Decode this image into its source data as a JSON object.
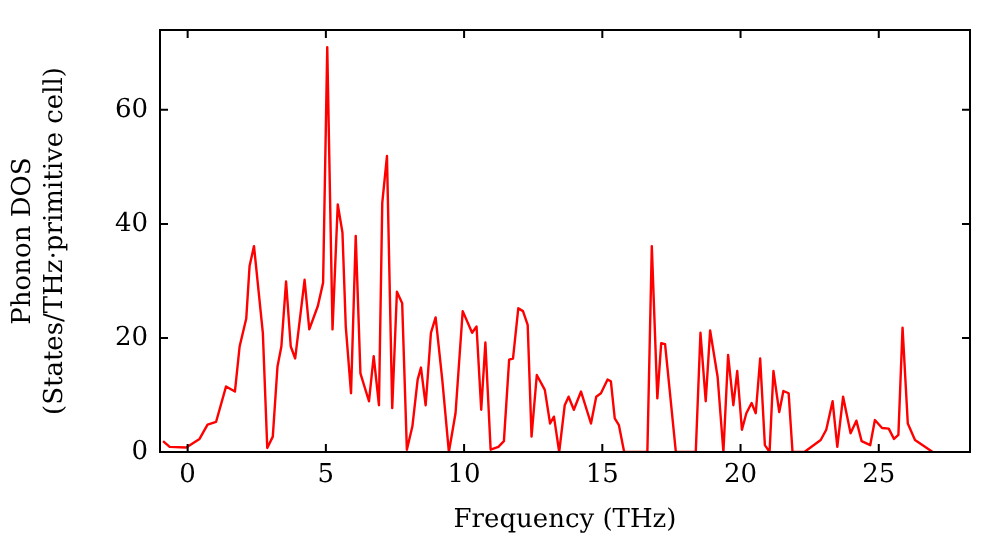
{
  "chart_data": {
    "type": "line",
    "xlabel": "Frequency (THz)",
    "ylabel": "Phonon DOS\n(States/THz·primitive cell)",
    "xlim": [
      -1,
      28.3
    ],
    "ylim": [
      0,
      74
    ],
    "xticks": [
      0,
      5,
      10,
      15,
      20,
      25
    ],
    "yticks": [
      0,
      20,
      40,
      60
    ],
    "grid": false,
    "legend": false,
    "marker": "none",
    "line_style": "solid",
    "series": [
      {
        "color": "#ff0000",
        "x": [
          -0.89,
          -0.65,
          -0.05,
          0.43,
          0.72,
          1.03,
          1.39,
          1.71,
          1.88,
          2.12,
          2.24,
          2.4,
          2.72,
          2.88,
          3.08,
          3.25,
          3.39,
          3.56,
          3.73,
          3.89,
          4.23,
          4.4,
          4.71,
          4.9,
          5.05,
          5.24,
          5.43,
          5.6,
          5.72,
          5.91,
          6.08,
          6.25,
          6.56,
          6.73,
          6.92,
          7.04,
          7.21,
          7.4,
          7.57,
          7.76,
          7.93,
          8.13,
          8.32,
          8.44,
          8.61,
          8.8,
          8.97,
          9.21,
          9.45,
          9.69,
          9.95,
          10.29,
          10.45,
          10.62,
          10.77,
          10.96,
          11.24,
          11.44,
          11.63,
          11.77,
          11.96,
          12.13,
          12.3,
          12.44,
          12.63,
          12.92,
          13.11,
          13.25,
          13.44,
          13.64,
          13.78,
          13.97,
          14.23,
          14.59,
          14.78,
          14.95,
          15.19,
          15.31,
          15.45,
          15.6,
          15.79,
          16.63,
          16.79,
          16.99,
          17.13,
          17.27,
          17.66,
          18.38,
          18.55,
          18.74,
          18.9,
          19.17,
          19.38,
          19.55,
          19.74,
          19.88,
          20.05,
          20.21,
          20.4,
          20.55,
          20.71,
          20.88,
          21.05,
          21.19,
          21.4,
          21.55,
          21.74,
          21.88,
          22.31,
          22.9,
          23.1,
          23.33,
          23.5,
          23.71,
          23.98,
          24.19,
          24.38,
          24.69,
          24.86,
          25.12,
          25.36,
          25.55,
          25.71,
          25.86,
          26.05,
          26.31,
          26.95
        ],
        "values": [
          1.9,
          0.9,
          0.8,
          2.3,
          4.8,
          5.3,
          11.5,
          10.6,
          18.5,
          23.4,
          32.6,
          36.1,
          20.9,
          0.7,
          2.7,
          15,
          18.5,
          29.9,
          18.5,
          16.4,
          30.2,
          21.5,
          25.6,
          29.7,
          71,
          21.5,
          43.4,
          38.5,
          22,
          10.3,
          37.9,
          13.8,
          8.9,
          16.8,
          8.2,
          43.7,
          51.9,
          7.7,
          28.1,
          26.1,
          0.4,
          4.5,
          12.7,
          14.8,
          8.2,
          20.9,
          23.6,
          12.7,
          0,
          6.8,
          24.7,
          20.9,
          22,
          7.4,
          19.2,
          0.4,
          0.9,
          1.9,
          16.2,
          16.4,
          25.2,
          24.7,
          22.3,
          2.7,
          13.5,
          10.9,
          5,
          6.2,
          0,
          8.2,
          9.7,
          7.4,
          10.6,
          5,
          9.7,
          10.3,
          12.7,
          12.4,
          5.9,
          4.7,
          0,
          0,
          36.1,
          9.4,
          19.1,
          18.9,
          0,
          0,
          20.9,
          8.9,
          21.3,
          13.2,
          0,
          17,
          8.2,
          14.2,
          3.9,
          6.8,
          8.6,
          6.8,
          16.4,
          1.2,
          0,
          14.2,
          7,
          10.7,
          10.3,
          0,
          0,
          2.1,
          3.9,
          8.9,
          0.9,
          9.7,
          3.3,
          5.5,
          1.9,
          1.2,
          5.6,
          4.2,
          4.1,
          2.3,
          3,
          21.8,
          5,
          2.1,
          0
        ]
      }
    ]
  }
}
